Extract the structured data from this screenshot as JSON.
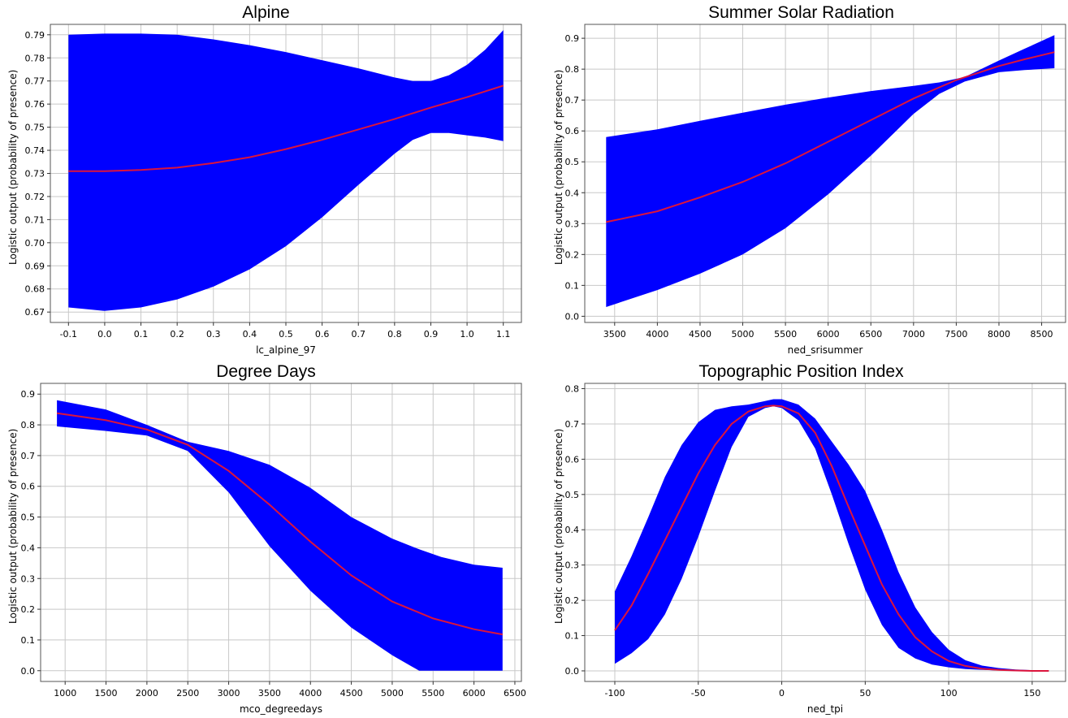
{
  "chart_data": [
    {
      "type": "area",
      "title": "Alpine",
      "xlabel": "lc_alpine_97",
      "ylabel": "Logistic output (probability of presence)",
      "xlim": [
        -0.15,
        1.15
      ],
      "ylim": [
        0.6655,
        0.7945
      ],
      "xticks": [
        -0.1,
        0.0,
        0.1,
        0.2,
        0.3,
        0.4,
        0.5,
        0.6,
        0.7,
        0.8,
        0.9,
        1.0,
        1.1
      ],
      "xtick_labels": [
        "-0.1",
        "0.0",
        "0.1",
        "0.2",
        "0.3",
        "0.4",
        "0.5",
        "0.6",
        "0.7",
        "0.8",
        "0.9",
        "1.0",
        "1.1"
      ],
      "yticks": [
        0.67,
        0.68,
        0.69,
        0.7,
        0.71,
        0.72,
        0.73,
        0.74,
        0.75,
        0.76,
        0.77,
        0.78,
        0.79
      ],
      "ytick_labels": [
        "0.67",
        "0.68",
        "0.69",
        "0.70",
        "0.71",
        "0.72",
        "0.73",
        "0.74",
        "0.75",
        "0.76",
        "0.77",
        "0.78",
        "0.79"
      ],
      "grid": true,
      "series": [
        {
          "role": "band",
          "x": [
            -0.1,
            0.0,
            0.1,
            0.2,
            0.3,
            0.4,
            0.5,
            0.6,
            0.7,
            0.8,
            0.85,
            0.9,
            0.95,
            1.0,
            1.05,
            1.1
          ],
          "upper": [
            0.79,
            0.7905,
            0.7905,
            0.79,
            0.788,
            0.7855,
            0.7825,
            0.779,
            0.7755,
            0.7715,
            0.77,
            0.77,
            0.7725,
            0.777,
            0.7835,
            0.792
          ],
          "lower": [
            0.672,
            0.6705,
            0.672,
            0.6755,
            0.681,
            0.6885,
            0.6985,
            0.711,
            0.725,
            0.7385,
            0.7445,
            0.7475,
            0.7475,
            0.7465,
            0.7455,
            0.744
          ]
        },
        {
          "role": "line",
          "x": [
            -0.1,
            0.0,
            0.1,
            0.2,
            0.3,
            0.4,
            0.5,
            0.6,
            0.7,
            0.8,
            0.9,
            1.0,
            1.1
          ],
          "values": [
            0.731,
            0.731,
            0.7315,
            0.7325,
            0.7345,
            0.737,
            0.7405,
            0.7445,
            0.749,
            0.7535,
            0.7585,
            0.763,
            0.768
          ]
        }
      ],
      "colors": {
        "band": "#0000ff",
        "line": "#dc143c"
      }
    },
    {
      "type": "area",
      "title": "Summer Solar Radiation",
      "xlabel": "ned_srisummer",
      "ylabel": "Logistic output (probability of presence)",
      "xlim": [
        3150,
        8780
      ],
      "ylim": [
        -0.02,
        0.945
      ],
      "xticks": [
        3500,
        4000,
        4500,
        5000,
        5500,
        6000,
        6500,
        7000,
        7500,
        8000,
        8500
      ],
      "xtick_labels": [
        "3500",
        "4000",
        "4500",
        "5000",
        "5500",
        "6000",
        "6500",
        "7000",
        "7500",
        "8000",
        "8500"
      ],
      "yticks": [
        0.0,
        0.1,
        0.2,
        0.3,
        0.4,
        0.5,
        0.6,
        0.7,
        0.8,
        0.9
      ],
      "ytick_labels": [
        "0.0",
        "0.1",
        "0.2",
        "0.3",
        "0.4",
        "0.5",
        "0.6",
        "0.7",
        "0.8",
        "0.9"
      ],
      "grid": true,
      "series": [
        {
          "role": "band",
          "x": [
            3400,
            4000,
            4500,
            5000,
            5500,
            6000,
            6500,
            7000,
            7300,
            7600,
            8000,
            8300,
            8650
          ],
          "upper": [
            0.58,
            0.605,
            0.633,
            0.659,
            0.685,
            0.708,
            0.729,
            0.746,
            0.757,
            0.775,
            0.828,
            0.866,
            0.91
          ],
          "lower": [
            0.03,
            0.085,
            0.138,
            0.2,
            0.285,
            0.395,
            0.52,
            0.655,
            0.72,
            0.76,
            0.79,
            0.797,
            0.803
          ]
        },
        {
          "role": "line",
          "x": [
            3400,
            4000,
            4500,
            5000,
            5500,
            6000,
            6500,
            7000,
            7500,
            8000,
            8300,
            8650
          ],
          "values": [
            0.305,
            0.34,
            0.385,
            0.435,
            0.495,
            0.565,
            0.635,
            0.705,
            0.765,
            0.81,
            0.832,
            0.855
          ]
        }
      ],
      "colors": {
        "band": "#0000ff",
        "line": "#dc143c"
      }
    },
    {
      "type": "area",
      "title": "Degree Days",
      "xlabel": "mco_degreedays",
      "ylabel": "Logistic output (probability of presence)",
      "xlim": [
        700,
        6580
      ],
      "ylim": [
        -0.035,
        0.935
      ],
      "xticks": [
        1000,
        1500,
        2000,
        2500,
        3000,
        3500,
        4000,
        4500,
        5000,
        5500,
        6000,
        6500
      ],
      "xtick_labels": [
        "1000",
        "1500",
        "2000",
        "2500",
        "3000",
        "3500",
        "4000",
        "4500",
        "5000",
        "5500",
        "6000",
        "6500"
      ],
      "yticks": [
        0.0,
        0.1,
        0.2,
        0.3,
        0.4,
        0.5,
        0.6,
        0.7,
        0.8,
        0.9
      ],
      "ytick_labels": [
        "0.0",
        "0.1",
        "0.2",
        "0.3",
        "0.4",
        "0.5",
        "0.6",
        "0.7",
        "0.8",
        "0.9"
      ],
      "grid": true,
      "series": [
        {
          "role": "band",
          "x": [
            900,
            1500,
            2000,
            2500,
            3000,
            3500,
            4000,
            4500,
            5000,
            5330,
            5600,
            6000,
            6350
          ],
          "upper": [
            0.88,
            0.85,
            0.8,
            0.745,
            0.715,
            0.67,
            0.595,
            0.5,
            0.43,
            0.395,
            0.37,
            0.345,
            0.335
          ],
          "lower": [
            0.795,
            0.78,
            0.765,
            0.715,
            0.58,
            0.405,
            0.26,
            0.14,
            0.05,
            0.0,
            0.0,
            0.0,
            0.0
          ]
        },
        {
          "role": "line",
          "x": [
            900,
            1500,
            2000,
            2500,
            3000,
            3500,
            4000,
            4500,
            5000,
            5500,
            6000,
            6350
          ],
          "values": [
            0.838,
            0.815,
            0.785,
            0.735,
            0.65,
            0.54,
            0.42,
            0.31,
            0.225,
            0.17,
            0.135,
            0.118
          ]
        }
      ],
      "colors": {
        "band": "#0000ff",
        "line": "#dc143c"
      }
    },
    {
      "type": "area",
      "title": "Topographic Position Index",
      "xlabel": "ned_tpi",
      "ylabel": "Logistic output (probability of presence)",
      "xlim": [
        -118,
        170
      ],
      "ylim": [
        -0.03,
        0.815
      ],
      "xticks": [
        -100,
        -50,
        0,
        50,
        100,
        150
      ],
      "xtick_labels": [
        "-100",
        "-50",
        "0",
        "50",
        "100",
        "150"
      ],
      "yticks": [
        0.0,
        0.1,
        0.2,
        0.3,
        0.4,
        0.5,
        0.6,
        0.7,
        0.8
      ],
      "ytick_labels": [
        "0.0",
        "0.1",
        "0.2",
        "0.3",
        "0.4",
        "0.5",
        "0.6",
        "0.7",
        "0.8"
      ],
      "grid": true,
      "series": [
        {
          "role": "band",
          "x": [
            -100,
            -90,
            -80,
            -70,
            -60,
            -50,
            -40,
            -30,
            -20,
            -10,
            -5,
            0,
            10,
            20,
            30,
            40,
            50,
            60,
            70,
            80,
            90,
            100,
            110,
            120,
            130,
            140,
            150,
            160
          ],
          "upper": [
            0.225,
            0.325,
            0.435,
            0.55,
            0.64,
            0.705,
            0.74,
            0.75,
            0.755,
            0.765,
            0.77,
            0.77,
            0.755,
            0.715,
            0.65,
            0.585,
            0.51,
            0.4,
            0.28,
            0.18,
            0.11,
            0.06,
            0.03,
            0.015,
            0.008,
            0.004,
            0.002,
            0.001
          ],
          "lower": [
            0.02,
            0.05,
            0.09,
            0.16,
            0.26,
            0.38,
            0.51,
            0.635,
            0.72,
            0.745,
            0.75,
            0.745,
            0.71,
            0.63,
            0.5,
            0.36,
            0.23,
            0.13,
            0.065,
            0.035,
            0.018,
            0.01,
            0.005,
            0.003,
            0.001,
            0.0,
            0.0,
            0.0
          ]
        },
        {
          "role": "line",
          "x": [
            -100,
            -90,
            -80,
            -70,
            -60,
            -50,
            -40,
            -30,
            -20,
            -10,
            -5,
            0,
            10,
            20,
            30,
            40,
            50,
            60,
            70,
            80,
            90,
            100,
            110,
            120,
            130,
            140,
            150,
            160
          ],
          "values": [
            0.115,
            0.185,
            0.275,
            0.37,
            0.465,
            0.56,
            0.64,
            0.7,
            0.735,
            0.75,
            0.752,
            0.75,
            0.73,
            0.675,
            0.58,
            0.465,
            0.355,
            0.245,
            0.16,
            0.095,
            0.055,
            0.028,
            0.014,
            0.006,
            0.003,
            0.001,
            0.0,
            0.0
          ]
        }
      ],
      "colors": {
        "band": "#0000ff",
        "line": "#dc143c"
      }
    }
  ]
}
